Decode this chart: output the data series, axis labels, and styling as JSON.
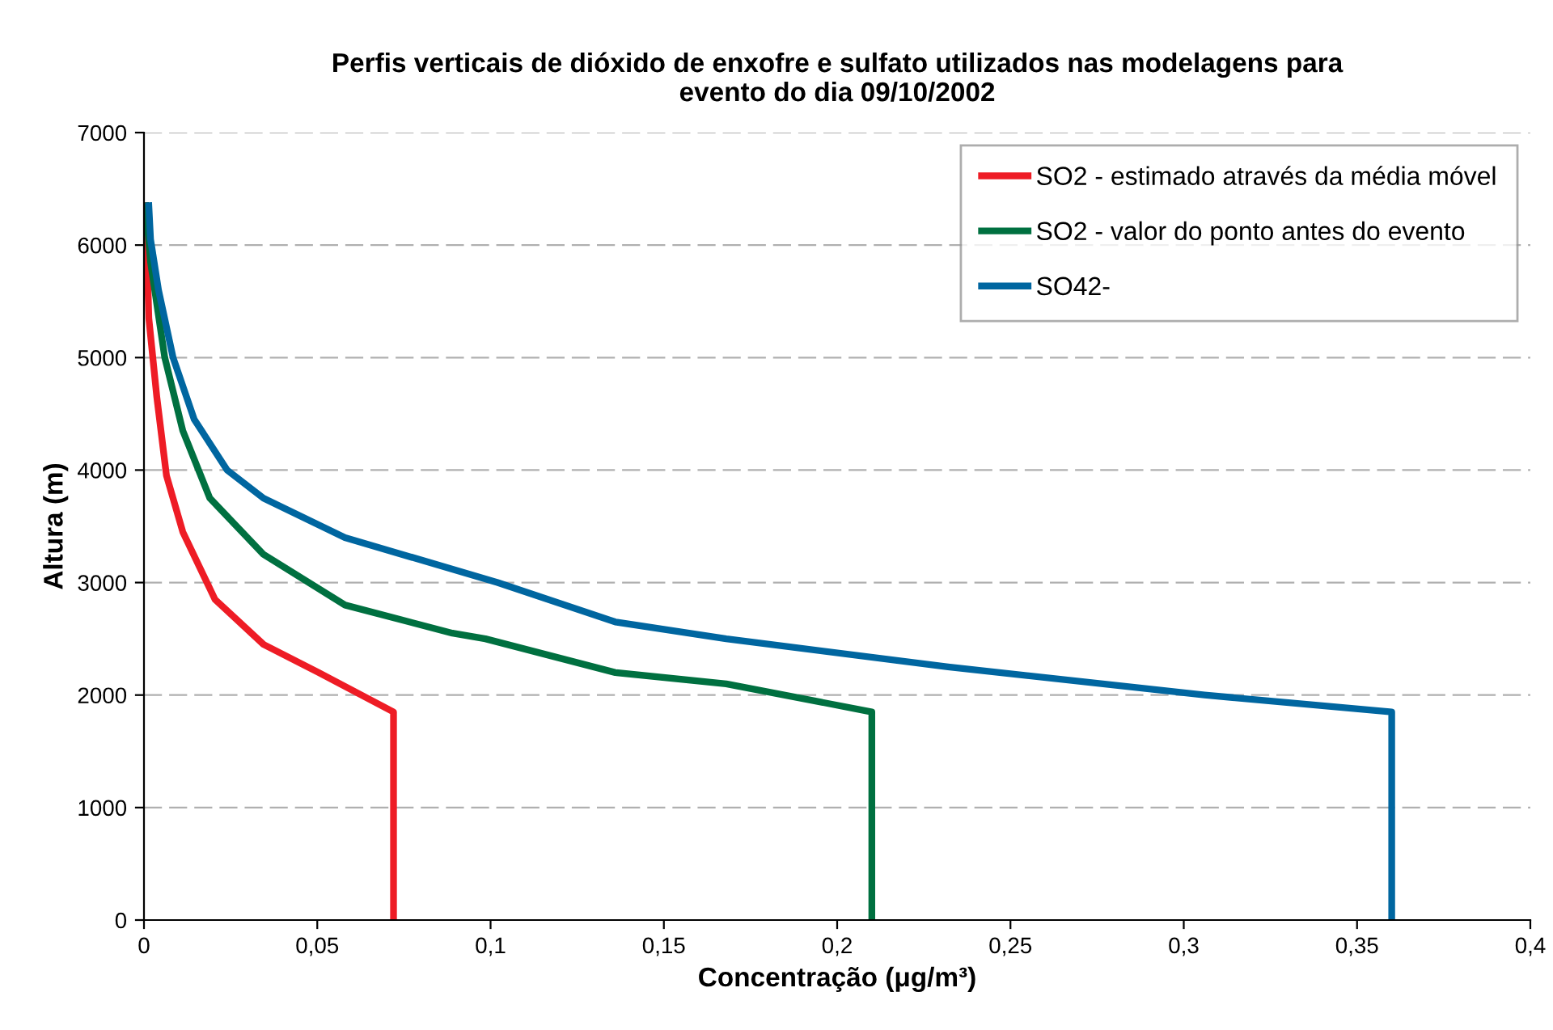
{
  "chart_data": {
    "type": "line",
    "title": "Perfis verticais de dióxido de enxofre e sulfato utilizados nas modelagens para\nevento do dia 09/10/2002",
    "xlabel": "Concentração (μg/m³)",
    "ylabel": "Altura (m)",
    "xlim": [
      0,
      0.4
    ],
    "ylim": [
      0,
      7000
    ],
    "xticks": [
      0,
      {
        "value": 0.05,
        "label": "0,05"
      },
      {
        "value": 0.1,
        "label": "0,1"
      },
      {
        "value": 0.15,
        "label": "0,15"
      },
      {
        "value": 0.2,
        "label": "0,2"
      },
      {
        "value": 0.25,
        "label": "0,25"
      },
      {
        "value": 0.3,
        "label": "0,3"
      },
      {
        "value": 0.35,
        "label": "0,35"
      },
      {
        "value": 0.4,
        "label": "0,4"
      }
    ],
    "yticks": [
      0,
      1000,
      2000,
      3000,
      4000,
      5000,
      6000,
      7000
    ],
    "grid": "y",
    "legend": "top right",
    "marker": "none",
    "line_style": "solid",
    "series": [
      {
        "name": "SO2 - estimado através da média móvel",
        "color": "#ee1c25",
        "x": [
          0.072,
          0.072,
          0.0504,
          0.0345,
          0.0205,
          0.0112,
          0.0065,
          0.0037,
          0.0014,
          0.0005
        ],
        "values": [
          0,
          1850,
          2200,
          2450,
          2850,
          3450,
          3950,
          4650,
          5350,
          6350
        ]
      },
      {
        "name": "SO2 - valor do ponto antes do evento",
        "color": "#007040",
        "x": [
          0.21,
          0.21,
          0.168,
          0.136,
          0.0985,
          0.089,
          0.058,
          0.0345,
          0.019,
          0.0112,
          0.006,
          0.0019,
          0.0005
        ],
        "values": [
          0,
          1850,
          2100,
          2200,
          2500,
          2550,
          2800,
          3250,
          3750,
          4350,
          5000,
          5850,
          6350
        ]
      },
      {
        "name": "SO42-",
        "color": "#0066a0",
        "x": [
          0.36,
          0.36,
          0.306,
          0.232,
          0.168,
          0.136,
          0.102,
          0.058,
          0.0345,
          0.024,
          0.0145,
          0.0084,
          0.0042,
          0.0019,
          0.0014
        ],
        "values": [
          0,
          1850,
          2000,
          2250,
          2500,
          2650,
          3000,
          3400,
          3750,
          4000,
          4450,
          5000,
          5600,
          6050,
          6350
        ]
      }
    ]
  }
}
